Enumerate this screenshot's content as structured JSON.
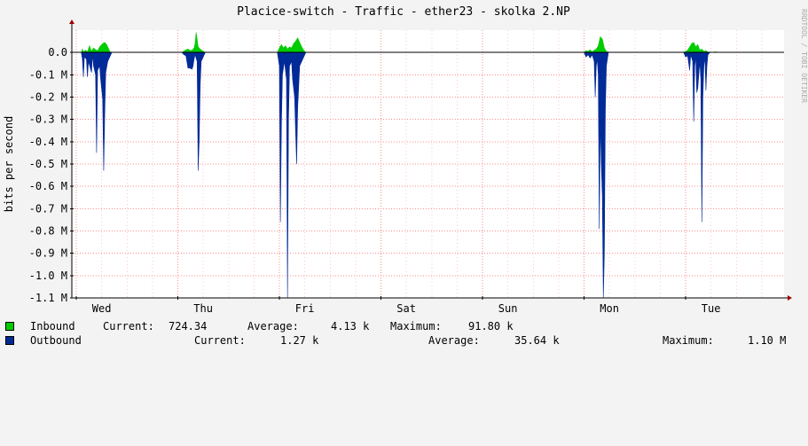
{
  "chart_data": {
    "type": "area",
    "title": "Placice-switch - Traffic - ether23 - skolka 2.NP",
    "ylabel": "bits per second",
    "watermark": "RRDTOOL / TOBI OETIKER",
    "ylim": [
      -1100000,
      100000
    ],
    "y_ticks": [
      0,
      -100000,
      -200000,
      -300000,
      -400000,
      -500000,
      -600000,
      -700000,
      -800000,
      -900000,
      -1000000,
      -1100000
    ],
    "y_tick_labels": [
      "0.0",
      "-0.1 M",
      "-0.2 M",
      "-0.3 M",
      "-0.4 M",
      "-0.5 M",
      "-0.6 M",
      "-0.7 M",
      "-0.8 M",
      "-0.9 M",
      "-1.0 M",
      "-1.1 M"
    ],
    "x_range_days": [
      0,
      7
    ],
    "x_labels": [
      "Wed",
      "Thu",
      "Fri",
      "Sat",
      "Sun",
      "Mon",
      "Tue"
    ],
    "grid": true,
    "series": [
      {
        "name": "Inbound",
        "color": "#00cc00",
        "points": [
          [
            0.05,
            0
          ],
          [
            0.06,
            15000
          ],
          [
            0.07,
            2000
          ],
          [
            0.09,
            10000
          ],
          [
            0.11,
            3000
          ],
          [
            0.13,
            30000
          ],
          [
            0.15,
            6000
          ],
          [
            0.17,
            20000
          ],
          [
            0.19,
            12000
          ],
          [
            0.21,
            8000
          ],
          [
            0.23,
            25000
          ],
          [
            0.26,
            40000
          ],
          [
            0.28,
            45000
          ],
          [
            0.3,
            35000
          ],
          [
            0.32,
            15000
          ],
          [
            0.33,
            5000
          ],
          [
            0.34,
            0
          ],
          [
            1.04,
            0
          ],
          [
            1.06,
            6000
          ],
          [
            1.08,
            12000
          ],
          [
            1.1,
            15000
          ],
          [
            1.12,
            9000
          ],
          [
            1.14,
            10000
          ],
          [
            1.16,
            20000
          ],
          [
            1.17,
            40000
          ],
          [
            1.18,
            90000
          ],
          [
            1.19,
            60000
          ],
          [
            1.2,
            25000
          ],
          [
            1.22,
            15000
          ],
          [
            1.25,
            5000
          ],
          [
            1.27,
            0
          ],
          [
            1.98,
            0
          ],
          [
            2.0,
            20000
          ],
          [
            2.02,
            35000
          ],
          [
            2.04,
            20000
          ],
          [
            2.06,
            30000
          ],
          [
            2.08,
            15000
          ],
          [
            2.1,
            25000
          ],
          [
            2.12,
            20000
          ],
          [
            2.14,
            40000
          ],
          [
            2.16,
            50000
          ],
          [
            2.18,
            65000
          ],
          [
            2.2,
            45000
          ],
          [
            2.22,
            25000
          ],
          [
            2.24,
            10000
          ],
          [
            2.26,
            0
          ],
          [
            5.0,
            0
          ],
          [
            5.02,
            8000
          ],
          [
            5.04,
            5000
          ],
          [
            5.06,
            12000
          ],
          [
            5.08,
            3000
          ],
          [
            5.1,
            10000
          ],
          [
            5.12,
            15000
          ],
          [
            5.14,
            30000
          ],
          [
            5.16,
            70000
          ],
          [
            5.18,
            60000
          ],
          [
            5.19,
            40000
          ],
          [
            5.2,
            20000
          ],
          [
            5.22,
            5000
          ],
          [
            5.24,
            0
          ],
          [
            5.98,
            0
          ],
          [
            6.0,
            5000
          ],
          [
            6.02,
            10000
          ],
          [
            6.04,
            25000
          ],
          [
            6.06,
            40000
          ],
          [
            6.08,
            45000
          ],
          [
            6.1,
            25000
          ],
          [
            6.12,
            35000
          ],
          [
            6.14,
            10000
          ],
          [
            6.16,
            15000
          ],
          [
            6.18,
            5000
          ],
          [
            6.2,
            8000
          ],
          [
            6.22,
            2000
          ],
          [
            6.24,
            0
          ],
          [
            6.3,
            3000
          ],
          [
            6.32,
            0
          ]
        ]
      },
      {
        "name": "Outbound",
        "color": "#002a97",
        "points": [
          [
            0.05,
            0
          ],
          [
            0.06,
            -30000
          ],
          [
            0.07,
            -110000
          ],
          [
            0.08,
            -20000
          ],
          [
            0.1,
            -30000
          ],
          [
            0.11,
            -110000
          ],
          [
            0.12,
            -40000
          ],
          [
            0.15,
            -90000
          ],
          [
            0.16,
            -10000
          ],
          [
            0.17,
            -60000
          ],
          [
            0.19,
            -100000
          ],
          [
            0.2,
            -450000
          ],
          [
            0.21,
            -80000
          ],
          [
            0.23,
            -60000
          ],
          [
            0.24,
            -120000
          ],
          [
            0.26,
            -210000
          ],
          [
            0.27,
            -530000
          ],
          [
            0.28,
            -280000
          ],
          [
            0.29,
            -90000
          ],
          [
            0.31,
            -40000
          ],
          [
            0.33,
            -20000
          ],
          [
            0.35,
            0
          ],
          [
            1.04,
            0
          ],
          [
            1.06,
            -10000
          ],
          [
            1.08,
            -15000
          ],
          [
            1.1,
            -70000
          ],
          [
            1.12,
            -70000
          ],
          [
            1.14,
            -75000
          ],
          [
            1.15,
            -60000
          ],
          [
            1.16,
            -30000
          ],
          [
            1.17,
            -10000
          ],
          [
            1.19,
            -40000
          ],
          [
            1.2,
            -530000
          ],
          [
            1.21,
            -400000
          ],
          [
            1.22,
            -150000
          ],
          [
            1.23,
            -40000
          ],
          [
            1.25,
            -20000
          ],
          [
            1.27,
            0
          ],
          [
            1.98,
            0
          ],
          [
            2.0,
            -60000
          ],
          [
            2.01,
            -760000
          ],
          [
            2.02,
            -320000
          ],
          [
            2.03,
            -100000
          ],
          [
            2.05,
            -40000
          ],
          [
            2.07,
            -120000
          ],
          [
            2.08,
            -1100000
          ],
          [
            2.09,
            -300000
          ],
          [
            2.1,
            -60000
          ],
          [
            2.12,
            -40000
          ],
          [
            2.13,
            -120000
          ],
          [
            2.15,
            -200000
          ],
          [
            2.16,
            -360000
          ],
          [
            2.17,
            -500000
          ],
          [
            2.18,
            -250000
          ],
          [
            2.2,
            -60000
          ],
          [
            2.22,
            -40000
          ],
          [
            2.24,
            -20000
          ],
          [
            2.26,
            0
          ],
          [
            5.0,
            0
          ],
          [
            5.02,
            -20000
          ],
          [
            5.04,
            -10000
          ],
          [
            5.06,
            -25000
          ],
          [
            5.08,
            -10000
          ],
          [
            5.1,
            -40000
          ],
          [
            5.11,
            -200000
          ],
          [
            5.12,
            -60000
          ],
          [
            5.13,
            -30000
          ],
          [
            5.14,
            -100000
          ],
          [
            5.15,
            -790000
          ],
          [
            5.16,
            -300000
          ],
          [
            5.17,
            -500000
          ],
          [
            5.18,
            -640000
          ],
          [
            5.19,
            -1100000
          ],
          [
            5.2,
            -900000
          ],
          [
            5.21,
            -250000
          ],
          [
            5.22,
            -60000
          ],
          [
            5.24,
            0
          ],
          [
            5.98,
            0
          ],
          [
            6.0,
            -20000
          ],
          [
            6.02,
            -15000
          ],
          [
            6.04,
            -80000
          ],
          [
            6.05,
            -10000
          ],
          [
            6.07,
            -40000
          ],
          [
            6.08,
            -310000
          ],
          [
            6.09,
            -60000
          ],
          [
            6.1,
            -20000
          ],
          [
            6.11,
            -180000
          ],
          [
            6.12,
            -160000
          ],
          [
            6.13,
            -100000
          ],
          [
            6.14,
            -40000
          ],
          [
            6.15,
            -120000
          ],
          [
            6.16,
            -760000
          ],
          [
            6.17,
            -200000
          ],
          [
            6.18,
            -60000
          ],
          [
            6.19,
            -20000
          ],
          [
            6.2,
            -170000
          ],
          [
            6.21,
            -60000
          ],
          [
            6.22,
            -10000
          ],
          [
            6.24,
            0
          ]
        ]
      }
    ]
  },
  "legend": {
    "inbound": {
      "label": "Inbound",
      "current_label": "Current:",
      "current_value": "724.34",
      "average_label": "Average:",
      "average_value": "4.13 k",
      "maximum_label": "Maximum:",
      "maximum_value": "91.80 k"
    },
    "outbound": {
      "label": "Outbound",
      "current_label": "Current:",
      "current_value": "1.27 k",
      "average_label": "Average:",
      "average_value": "35.64 k",
      "maximum_label": "Maximum:",
      "maximum_value": "1.10 M"
    }
  }
}
